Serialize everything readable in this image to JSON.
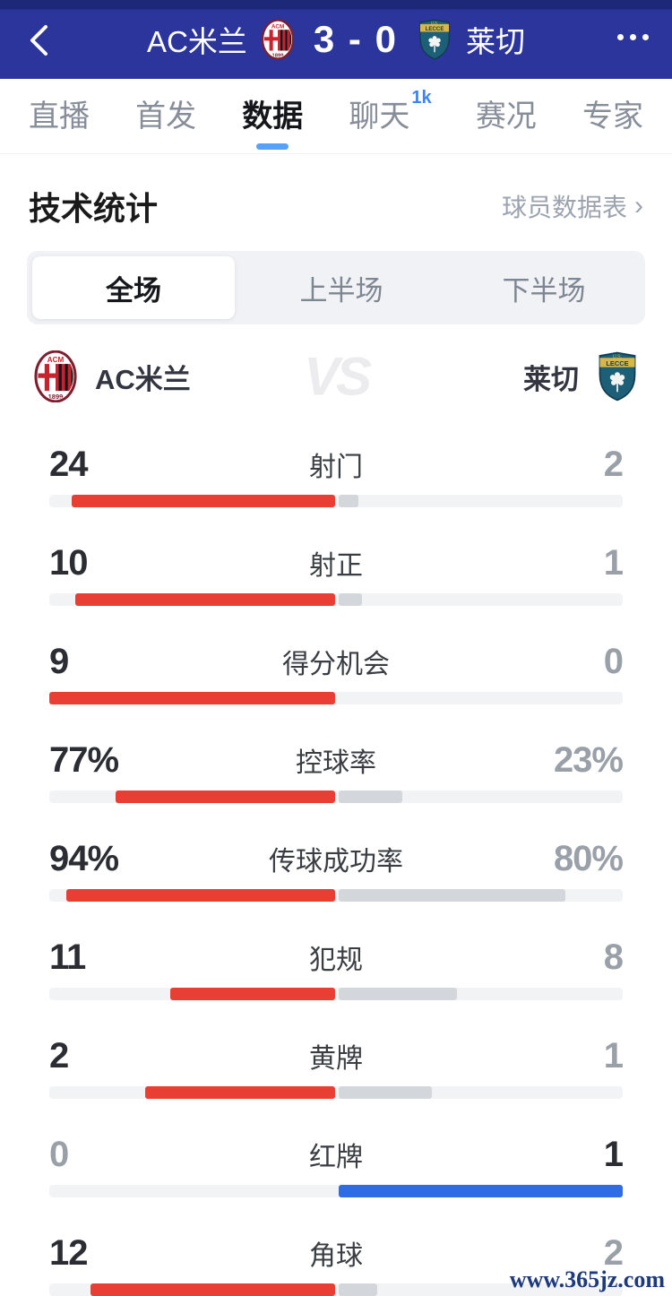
{
  "header": {
    "home_team": "AC米兰",
    "away_team": "莱切",
    "score": "3 - 0"
  },
  "tabs": [
    {
      "label": "直播",
      "active": false
    },
    {
      "label": "首发",
      "active": false
    },
    {
      "label": "数据",
      "active": true
    },
    {
      "label": "聊天",
      "active": false,
      "badge": "1k"
    },
    {
      "label": "赛况",
      "active": false
    },
    {
      "label": "专家",
      "active": false
    }
  ],
  "stats_section": {
    "title": "技术统计",
    "players_link": "球员数据表",
    "chevron": "›"
  },
  "period_tabs": [
    {
      "label": "全场",
      "active": true
    },
    {
      "label": "上半场",
      "active": false
    },
    {
      "label": "下半场",
      "active": false
    }
  ],
  "teams_row": {
    "home": "AC米兰",
    "away": "莱切",
    "vs": "VS"
  },
  "chart_data": {
    "type": "bar",
    "title": "技术统计 全场 AC米兰 vs 莱切",
    "categories": [
      "射门",
      "射正",
      "得分机会",
      "控球率",
      "传球成功率",
      "犯规",
      "黄牌",
      "红牌",
      "角球"
    ],
    "series": [
      {
        "name": "AC米兰",
        "values": [
          "24",
          "10",
          "9",
          "77%",
          "94%",
          "11",
          "2",
          "0",
          "12"
        ]
      },
      {
        "name": "莱切",
        "values": [
          "2",
          "1",
          "0",
          "23%",
          "80%",
          "8",
          "1",
          "1",
          "2"
        ]
      }
    ],
    "rows": [
      {
        "label": "射门",
        "home": "24",
        "away": "2",
        "home_pct": 92.3,
        "away_pct": 7.7,
        "home_color": "red",
        "away_color": "gray",
        "home_strong": true,
        "away_strong": false
      },
      {
        "label": "射正",
        "home": "10",
        "away": "1",
        "home_pct": 90.9,
        "away_pct": 9.1,
        "home_color": "red",
        "away_color": "gray",
        "home_strong": true,
        "away_strong": false
      },
      {
        "label": "得分机会",
        "home": "9",
        "away": "0",
        "home_pct": 100,
        "away_pct": 0,
        "home_color": "red",
        "away_color": "gray",
        "home_strong": true,
        "away_strong": false
      },
      {
        "label": "控球率",
        "home": "77%",
        "away": "23%",
        "home_pct": 77,
        "away_pct": 23,
        "home_color": "red",
        "away_color": "gray",
        "home_strong": true,
        "away_strong": false
      },
      {
        "label": "传球成功率",
        "home": "94%",
        "away": "80%",
        "home_pct": 94,
        "away_pct": 80,
        "home_color": "red",
        "away_color": "gray",
        "home_strong": true,
        "away_strong": false
      },
      {
        "label": "犯规",
        "home": "11",
        "away": "8",
        "home_pct": 57.9,
        "away_pct": 42.1,
        "home_color": "red",
        "away_color": "gray",
        "home_strong": true,
        "away_strong": false
      },
      {
        "label": "黄牌",
        "home": "2",
        "away": "1",
        "home_pct": 66.7,
        "away_pct": 33.3,
        "home_color": "red",
        "away_color": "gray",
        "home_strong": true,
        "away_strong": false
      },
      {
        "label": "红牌",
        "home": "0",
        "away": "1",
        "home_pct": 0,
        "away_pct": 100,
        "home_color": "red",
        "away_color": "blue",
        "home_strong": false,
        "away_strong": true
      },
      {
        "label": "角球",
        "home": "12",
        "away": "2",
        "home_pct": 85.7,
        "away_pct": 14.3,
        "home_color": "red",
        "away_color": "gray",
        "home_strong": true,
        "away_strong": false
      }
    ]
  },
  "watermark": "www.365jz.com",
  "colors": {
    "header_bg": "#2b359c",
    "tab_accent": "#57a1f7",
    "bar_red": "#e93e33",
    "bar_blue": "#2d6ce4",
    "bar_gray": "#d3d6da",
    "bar_track": "#f2f3f5"
  }
}
